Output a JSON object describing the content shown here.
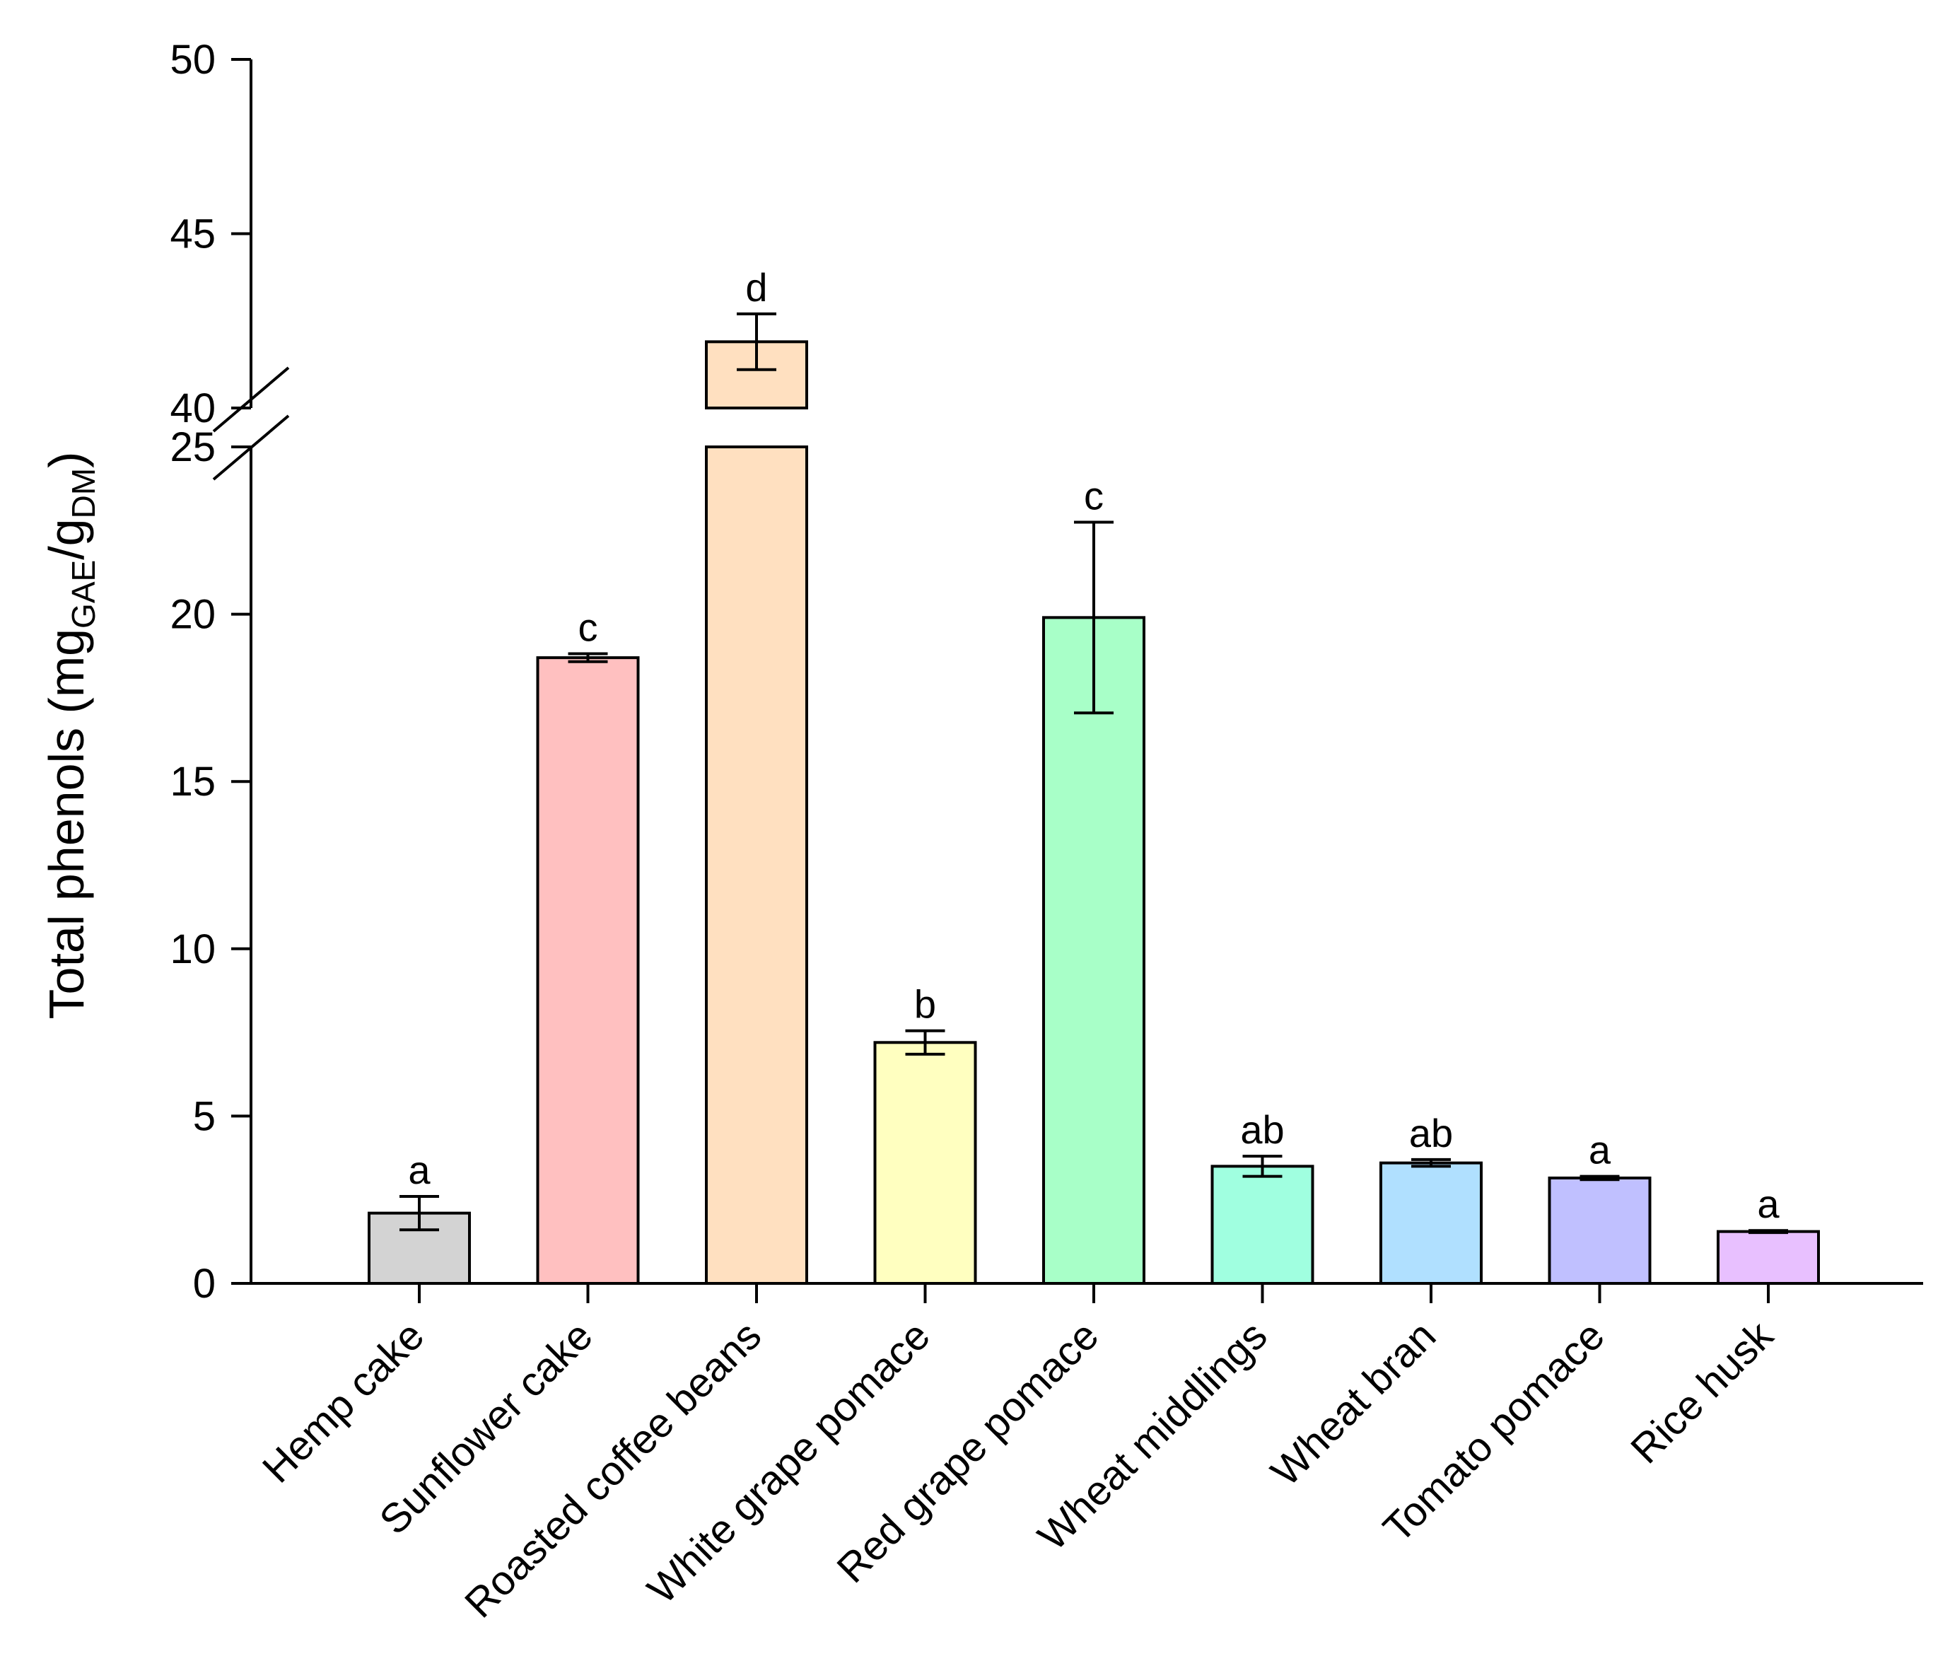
{
  "chart_data": {
    "type": "bar",
    "title": "",
    "xlabel": "",
    "ylabel": {
      "main": "Total phenols (mg",
      "sub1": "GAE",
      "mid": "/g",
      "sub2": "DM",
      "end": ")"
    },
    "categories": [
      "Hemp cake",
      "Sunflower cake",
      "Roasted coffee beans",
      "White grape pomace",
      "Red grape pomace",
      "Wheat middlings",
      "Wheat bran",
      "Tomato pomace",
      "Rice husk"
    ],
    "values": [
      2.1,
      18.7,
      41.9,
      7.2,
      19.9,
      3.5,
      3.6,
      3.15,
      1.55
    ],
    "errors": [
      0.5,
      0.12,
      0.8,
      0.35,
      2.85,
      0.3,
      0.1,
      0.05,
      0.03
    ],
    "significance": [
      "a",
      "c",
      "d",
      "b",
      "c",
      "ab",
      "ab",
      "a",
      "a"
    ],
    "colors": [
      "#d3d3d3",
      "#ffc0c0",
      "#ffe0c0",
      "#ffffc0",
      "#a8ffc8",
      "#a0ffe0",
      "#b0e0ff",
      "#c0c0ff",
      "#e8c0ff"
    ],
    "y_axis_break": {
      "lower_range": [
        0,
        25
      ],
      "upper_range": [
        40,
        50
      ]
    },
    "lower_ticks": [
      "0",
      "5",
      "10",
      "15",
      "20",
      "25"
    ],
    "upper_ticks": [
      "40",
      "45",
      "50"
    ]
  }
}
